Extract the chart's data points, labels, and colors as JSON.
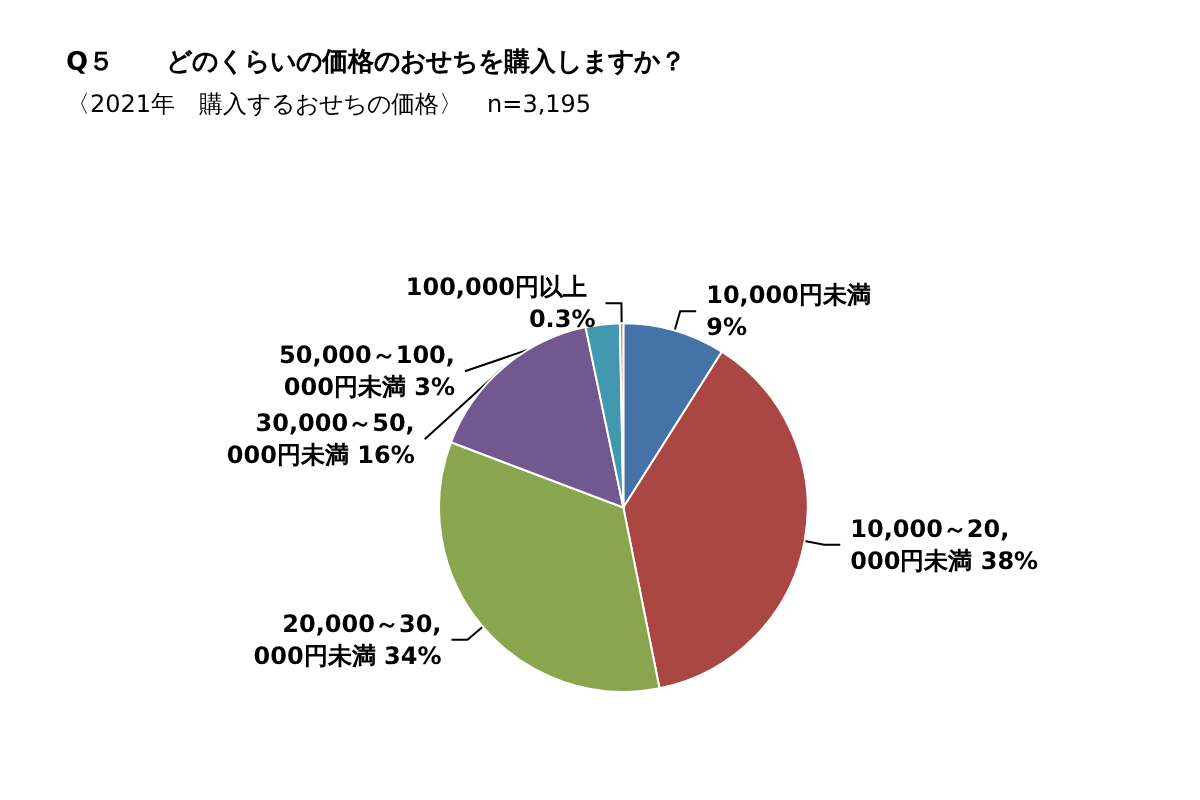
{
  "chart_data": {
    "type": "pie",
    "title": "Q５　　どのくらいの価格のおせちを購入しますか？",
    "subtitle": "〈2021年　購入するおせちの価格〉　n=3,195",
    "categories": [
      "10,000円未満",
      "10,000～20,000円未満",
      "20,000～30,000円未満",
      "30,000～50,000円未満",
      "50,000～100,000円未満",
      "100,000円以上"
    ],
    "value_labels": [
      "9%",
      "38%",
      "34%",
      "16%",
      "3%",
      "0.3%"
    ],
    "values": [
      9,
      38,
      34,
      16,
      3,
      0.3
    ],
    "colors": [
      "#4572a7",
      "#aa4643",
      "#89a54e",
      "#71588f",
      "#4198af",
      "#db843d"
    ],
    "legend": false
  }
}
